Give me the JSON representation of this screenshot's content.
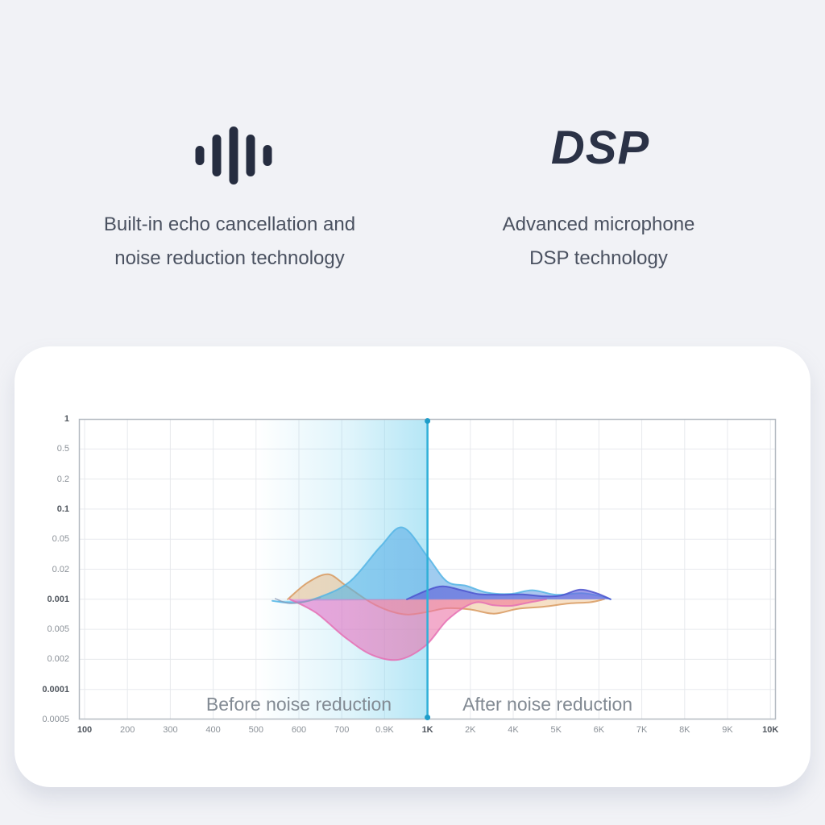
{
  "page": {
    "background": "#f1f2f6"
  },
  "features": {
    "left": {
      "icon": "soundwave-icon",
      "line1": "Built-in echo cancellation and",
      "line2": "noise reduction technology"
    },
    "right": {
      "logo_text": "DSP",
      "line1": "Advanced microphone",
      "line2": "DSP technology"
    }
  },
  "chart_data": {
    "type": "area",
    "title": "",
    "x_axis": {
      "labels": [
        "100",
        "200",
        "300",
        "400",
        "500",
        "600",
        "700",
        "0.9K",
        "1K",
        "2K",
        "4K",
        "5K",
        "6K",
        "7K",
        "8K",
        "9K",
        "10K"
      ],
      "bold_indices": [
        0,
        8,
        16
      ]
    },
    "y_axis": {
      "labels": [
        "1",
        "0.5",
        "0.2",
        "0.1",
        "0.05",
        "0.02",
        "0.001",
        "0.005",
        "0.002",
        "0.0001",
        "0.0005"
      ],
      "bold_indices": [
        0,
        3,
        6,
        9
      ],
      "baseline_label": "0.001"
    },
    "grid": true,
    "legend": "none",
    "annotations": [
      {
        "text": "Before noise reduction",
        "x_index": 5.0,
        "row": -3.7
      },
      {
        "text": "After noise reduction",
        "x_index": 10.8,
        "row": -3.7
      }
    ],
    "highlight_band": {
      "from_label": "500",
      "to_label": "1K",
      "color": "#7fd4ef",
      "edge_color": "#2fb0d8",
      "dot_color": "#1f9dc9"
    },
    "series": [
      {
        "name": "before-orange",
        "stroke": "#d89a60",
        "fill_from": "#e4b47e",
        "fill_to": "#f0c492",
        "opacity": 0.5,
        "points": [
          [
            4.74,
            0
          ],
          [
            5.2,
            0.55
          ],
          [
            5.68,
            0.83
          ],
          [
            6.1,
            0.45
          ],
          [
            6.67,
            -0.1
          ],
          [
            7.1,
            -0.38
          ],
          [
            7.52,
            -0.51
          ],
          [
            8.0,
            -0.42
          ],
          [
            8.45,
            -0.3
          ],
          [
            9.0,
            -0.34
          ],
          [
            9.55,
            -0.48
          ],
          [
            10.1,
            -0.32
          ],
          [
            10.7,
            -0.25
          ],
          [
            11.3,
            -0.14
          ],
          [
            11.8,
            -0.1
          ],
          [
            12.12,
            0
          ]
        ]
      },
      {
        "name": "before-blue",
        "stroke": "#55b5e5",
        "fill_from": "#45bce8",
        "fill_to": "#7e97e3",
        "opacity": 0.6,
        "points": [
          [
            4.38,
            -0.05
          ],
          [
            4.9,
            -0.12
          ],
          [
            5.5,
            0.08
          ],
          [
            6.2,
            0.6
          ],
          [
            6.9,
            1.75
          ],
          [
            7.42,
            2.39
          ],
          [
            8.0,
            1.42
          ],
          [
            8.45,
            0.6
          ],
          [
            8.9,
            0.45
          ],
          [
            9.4,
            0.22
          ],
          [
            9.95,
            0.18
          ],
          [
            10.45,
            0.3
          ],
          [
            11.0,
            0.15
          ],
          [
            11.6,
            0.2
          ],
          [
            12.05,
            0.1
          ],
          [
            12.27,
            0
          ]
        ]
      },
      {
        "name": "before-pink",
        "stroke": "#e570b4",
        "fill_from": "#df6ecf",
        "fill_to": "#f4798c",
        "opacity": 0.6,
        "points": [
          [
            4.79,
            0
          ],
          [
            5.4,
            -0.45
          ],
          [
            6.07,
            -1.26
          ],
          [
            6.7,
            -1.85
          ],
          [
            7.33,
            -2.01
          ],
          [
            7.95,
            -1.55
          ],
          [
            8.48,
            -0.67
          ],
          [
            9.08,
            -0.12
          ],
          [
            9.55,
            -0.2
          ],
          [
            9.95,
            -0.22
          ],
          [
            10.4,
            -0.1
          ],
          [
            10.77,
            0
          ]
        ]
      },
      {
        "name": "after-purple",
        "stroke": "#4c54ce",
        "fill_from": "#5a60d8",
        "fill_to": "#6b6ade",
        "opacity": 0.65,
        "points": [
          [
            7.52,
            0
          ],
          [
            8.0,
            0.3
          ],
          [
            8.36,
            0.43
          ],
          [
            8.8,
            0.3
          ],
          [
            9.2,
            0.17
          ],
          [
            9.7,
            0.15
          ],
          [
            10.2,
            0.16
          ],
          [
            10.7,
            0.1
          ],
          [
            11.1,
            0.12
          ],
          [
            11.55,
            0.32
          ],
          [
            11.9,
            0.22
          ],
          [
            12.15,
            0.08
          ],
          [
            12.27,
            0
          ]
        ]
      },
      {
        "name": "lead-line",
        "stroke": "#8c9cba",
        "fill_from": null,
        "fill_to": null,
        "opacity": 0.9,
        "points": [
          [
            4.45,
            0.02
          ],
          [
            4.75,
            -0.13
          ],
          [
            5.1,
            -0.1
          ],
          [
            5.5,
            0.05
          ]
        ]
      }
    ],
    "colors": {
      "grid": "#e7e9ed",
      "border": "#b4bac1",
      "tick": "#8b9198",
      "tick_bold": "#51575f",
      "annotation": "#828a93"
    },
    "row_meaning": "vertical offset in grid rows relative to the 0.001 centerline (positive = up)"
  }
}
